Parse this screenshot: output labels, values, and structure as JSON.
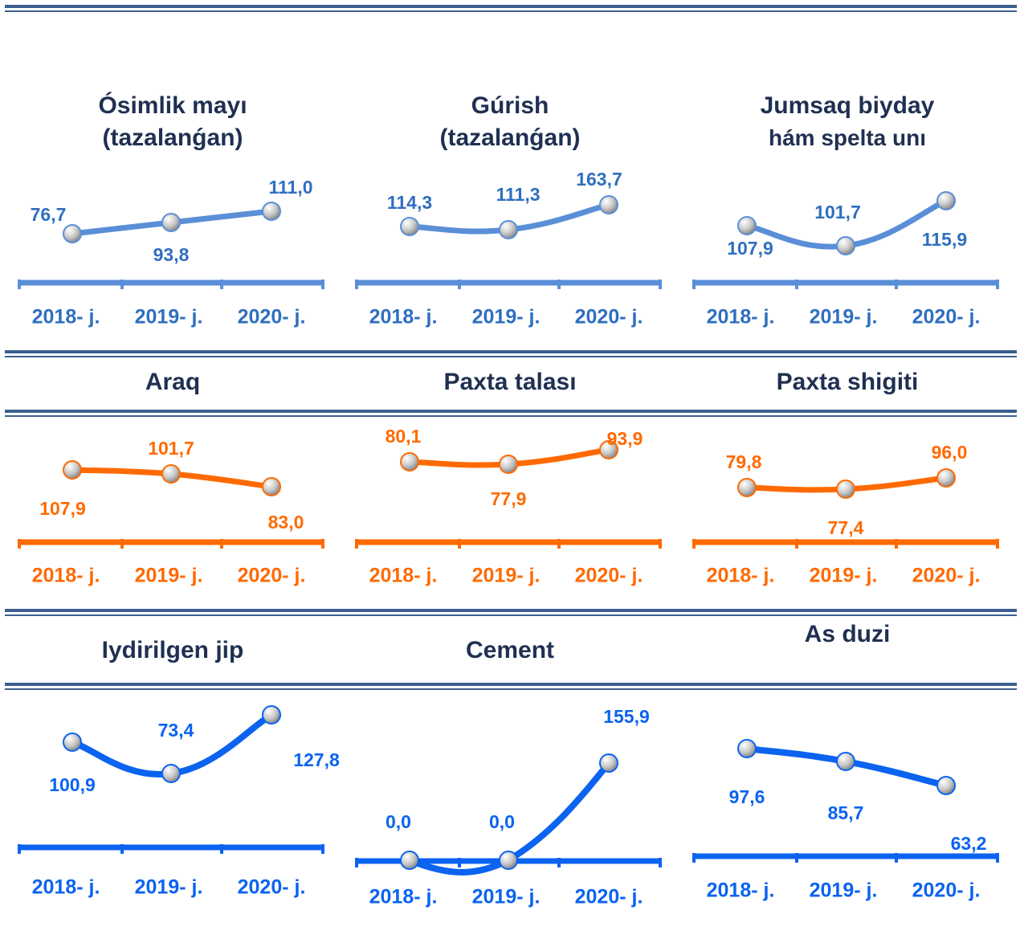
{
  "colors": {
    "blue_light": "#5a8fd8",
    "orange": "#ff6a00",
    "blue": "#0b63f0",
    "label_light": "#2f6fbf",
    "rule": "#3c5f8f"
  },
  "chart_data": [
    {
      "type": "line",
      "title": [
        "Ósimlik mayı",
        "(tazalanǵan)"
      ],
      "categories": [
        "2018- j.",
        "2019- j.",
        "2020- j."
      ],
      "series": [
        {
          "values": [
            76.7,
            93.8,
            111.0
          ]
        }
      ],
      "labels": [
        "76,7",
        "93,8",
        "111,0"
      ]
    },
    {
      "type": "line",
      "title": [
        "Gúrish",
        "(tazalanǵan)"
      ],
      "categories": [
        "2018- j.",
        "2019- j.",
        "2020- j."
      ],
      "series": [
        {
          "values": [
            114.3,
            111.3,
            163.7
          ]
        }
      ],
      "labels": [
        "114,3",
        "111,3",
        "163,7"
      ]
    },
    {
      "type": "line",
      "title": [
        "Jumsaq biyday",
        "hám spelta unı"
      ],
      "categories": [
        "2018- j.",
        "2019- j.",
        "2020- j."
      ],
      "series": [
        {
          "values": [
            107.9,
            101.7,
            115.9
          ]
        }
      ],
      "labels": [
        "107,9",
        "101,7",
        "115,9"
      ]
    },
    {
      "type": "line",
      "title": [
        "Araq"
      ],
      "categories": [
        "2018- j.",
        "2019- j.",
        "2020- j."
      ],
      "series": [
        {
          "values": [
            107.9,
            101.7,
            83.0
          ]
        }
      ],
      "labels": [
        "107,9",
        "101,7",
        "83,0"
      ]
    },
    {
      "type": "line",
      "title": [
        "Paxta talası"
      ],
      "categories": [
        "2018- j.",
        "2019- j.",
        "2020- j."
      ],
      "series": [
        {
          "values": [
            80.1,
            77.9,
            93.9
          ]
        }
      ],
      "labels": [
        "80,1",
        "77,9",
        "93,9"
      ]
    },
    {
      "type": "line",
      "title": [
        "Paxta shigiti"
      ],
      "categories": [
        "2018- j.",
        "2019- j.",
        "2020- j."
      ],
      "series": [
        {
          "values": [
            79.8,
            77.4,
            96.0
          ]
        }
      ],
      "labels": [
        "79,8",
        "77,4",
        "96,0"
      ]
    },
    {
      "type": "line",
      "title": [
        "Iydirilgen jip"
      ],
      "categories": [
        "2018- j.",
        "2019- j.",
        "2020- j."
      ],
      "series": [
        {
          "values": [
            100.9,
            73.4,
            127.8
          ]
        }
      ],
      "labels": [
        "100,9",
        "73,4",
        "127,8"
      ]
    },
    {
      "type": "line",
      "title": [
        "Cement"
      ],
      "categories": [
        "2018- j.",
        "2019- j.",
        "2020- j."
      ],
      "series": [
        {
          "values": [
            0.0,
            0.0,
            155.9
          ]
        }
      ],
      "labels": [
        "0,0",
        "0,0",
        "155,9"
      ]
    },
    {
      "type": "line",
      "title": [
        "As duzi"
      ],
      "categories": [
        "2018- j.",
        "2019- j.",
        "2020- j."
      ],
      "series": [
        {
          "values": [
            97.6,
            85.7,
            63.2
          ]
        }
      ],
      "labels": [
        "97,6",
        "85,7",
        "63,2"
      ]
    }
  ]
}
